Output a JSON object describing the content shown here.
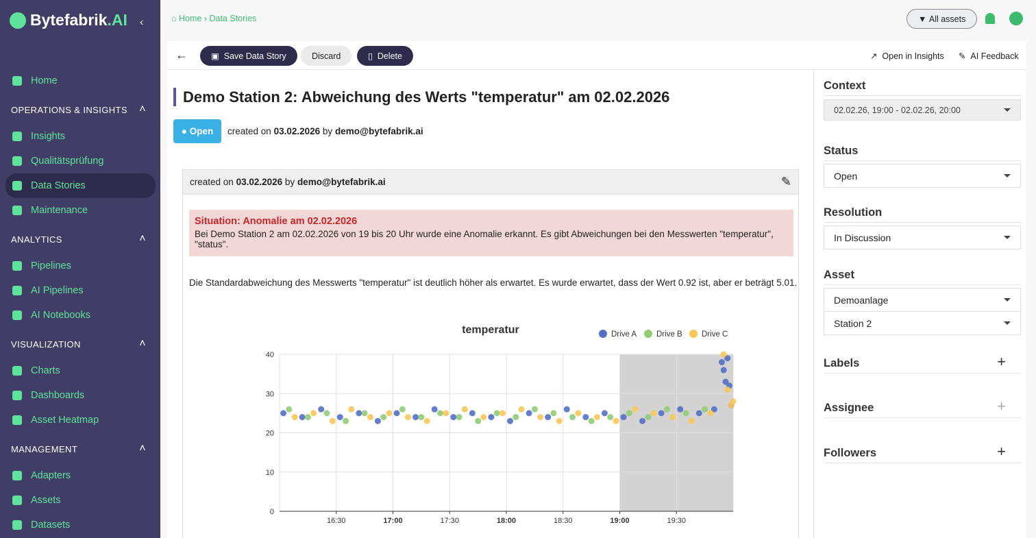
{
  "brand": {
    "name": "Bytefabrik",
    "suffix": ".AI"
  },
  "sidebar": {
    "home": "Home",
    "sections": [
      {
        "title": "OPERATIONS & INSIGHTS",
        "items": [
          "Insights",
          "Qualitätsprüfung",
          "Data Stories",
          "Maintenance"
        ]
      },
      {
        "title": "ANALYTICS",
        "items": [
          "Pipelines",
          "AI Pipelines",
          "AI Notebooks"
        ]
      },
      {
        "title": "VISUALIZATION",
        "items": [
          "Charts",
          "Dashboards",
          "Asset Heatmap"
        ]
      },
      {
        "title": "MANAGEMENT",
        "items": [
          "Adapters",
          "Assets",
          "Datasets"
        ]
      }
    ],
    "active": "Data Stories"
  },
  "breadcrumb": [
    "Home",
    "Data Stories"
  ],
  "filter": "All assets",
  "toolbar": {
    "save": "Save Data Story",
    "discard": "Discard",
    "delete": "Delete",
    "open_insights": "Open in Insights",
    "feedback": "AI Feedback"
  },
  "story": {
    "title": "Demo Station 2: Abweichung des Werts \"temperatur\" am 02.02.2026",
    "status": "Open",
    "created_prefix": "created on",
    "created_date": "03.02.2026",
    "by": "by",
    "author": "demo@bytefabrik.ai"
  },
  "comment": {
    "created_prefix": "created on",
    "created_date": "03.02.2026",
    "by": "by",
    "author": "demo@bytefabrik.ai",
    "situation_title": "Situation: Anomalie am 02.02.2026",
    "situation_text": "Bei Demo Station 2 am 02.02.2026 von 19 bis 20 Uhr wurde eine Anomalie erkannt. Es gibt Abweichungen bei den Messwerten \"temperatur\", \"status\".",
    "paragraph": "Die Standardabweichung des Messwerts \"temperatur\" ist deutlich höher als erwartet. Es wurde erwartet, dass der Wert 0.92 ist, aber er beträgt 5.01."
  },
  "panel": {
    "context_label": "Context",
    "context_value": "02.02.26, 19:00 - 02.02.26, 20:00",
    "status_label": "Status",
    "status_value": "Open",
    "resolution_label": "Resolution",
    "resolution_value": "In Discussion",
    "asset_label": "Asset",
    "asset_values": [
      "Demoanlage",
      "Station 2"
    ],
    "labels_label": "Labels",
    "assignee_label": "Assignee",
    "followers_label": "Followers"
  },
  "chart_data": {
    "type": "scatter",
    "title": "temperatur",
    "xlim": [
      960,
      1200
    ],
    "xticks": [
      {
        "value": 990,
        "label": "16:30"
      },
      {
        "value": 1020,
        "label": "17:00"
      },
      {
        "value": 1050,
        "label": "17:30"
      },
      {
        "value": 1080,
        "label": "18:00"
      },
      {
        "value": 1110,
        "label": "18:30"
      },
      {
        "value": 1140,
        "label": "19:00"
      },
      {
        "value": 1170,
        "label": "19:30"
      }
    ],
    "ylim": [
      0,
      40
    ],
    "yticks": [
      0,
      10,
      20,
      30,
      40
    ],
    "grid": true,
    "highlight": {
      "xlim": [
        1140,
        1200
      ],
      "color": "#d3d3d3"
    },
    "series": [
      {
        "name": "Drive A",
        "color": "#5470c6",
        "x": [
          962,
          972,
          982,
          992,
          1002,
          1012,
          1022,
          1032,
          1042,
          1052,
          1062,
          1072,
          1082,
          1092,
          1102,
          1112,
          1122,
          1132,
          1142,
          1152,
          1162,
          1172,
          1182,
          1190,
          1194,
          1195,
          1196,
          1197,
          1198,
          1199
        ],
        "values": [
          25,
          24,
          26,
          24,
          25,
          23,
          25,
          24,
          26,
          24,
          25,
          24,
          23,
          25,
          24,
          26,
          24,
          25,
          24,
          23,
          25,
          26,
          25,
          26,
          38,
          36,
          33,
          39,
          32,
          27
        ]
      },
      {
        "name": "Drive B",
        "color": "#91cc75",
        "x": [
          965,
          975,
          985,
          995,
          1005,
          1015,
          1025,
          1035,
          1045,
          1055,
          1065,
          1075,
          1085,
          1095,
          1105,
          1115,
          1125,
          1135,
          1145,
          1155,
          1165,
          1175,
          1185
        ],
        "values": [
          26,
          24,
          25,
          23,
          25,
          24,
          26,
          24,
          25,
          24,
          23,
          25,
          24,
          26,
          25,
          24,
          23,
          24,
          25,
          24,
          26,
          25,
          26
        ]
      },
      {
        "name": "Drive C",
        "color": "#fac858",
        "x": [
          968,
          978,
          988,
          998,
          1008,
          1018,
          1028,
          1038,
          1048,
          1058,
          1068,
          1078,
          1088,
          1098,
          1108,
          1118,
          1128,
          1138,
          1148,
          1158,
          1168,
          1178,
          1188,
          1195,
          1197,
          1199,
          1200
        ],
        "values": [
          24,
          25,
          23,
          26,
          24,
          25,
          24,
          23,
          25,
          26,
          24,
          25,
          26,
          24,
          23,
          25,
          24,
          23,
          26,
          25,
          24,
          23,
          25,
          40,
          31,
          27,
          28
        ]
      }
    ]
  }
}
